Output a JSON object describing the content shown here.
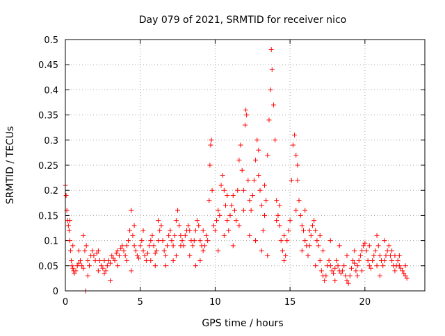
{
  "chart_data": {
    "type": "scatter",
    "title": "Day 079 of 2021, SRMTID for receiver nico",
    "xlabel": "GPS time / hours",
    "ylabel": "SRMTID / TECUs",
    "xlim": [
      0,
      24
    ],
    "ylim": [
      0,
      0.5
    ],
    "xticks": [
      0,
      5,
      10,
      15,
      20
    ],
    "xtick_labels": [
      "0",
      "5",
      "10",
      "15",
      "20"
    ],
    "yticks": [
      0,
      0.05,
      0.1,
      0.15,
      0.2,
      0.25,
      0.3,
      0.35,
      0.4,
      0.45,
      0.5
    ],
    "ytick_labels": [
      "0",
      "0.05",
      "0.1",
      "0.15",
      "0.2",
      "0.25",
      "0.3",
      "0.35",
      "0.4",
      "0.45",
      "0.5"
    ],
    "grid": true,
    "marker": "plus",
    "color": "#ff0000",
    "series": [
      {
        "name": "SRMTID",
        "points": [
          [
            0.0,
            0.21
          ],
          [
            0.05,
            0.19
          ],
          [
            0.1,
            0.16
          ],
          [
            0.15,
            0.14
          ],
          [
            0.2,
            0.13
          ],
          [
            0.25,
            0.12
          ],
          [
            0.3,
            0.1
          ],
          [
            0.35,
            0.08
          ],
          [
            0.4,
            0.06
          ],
          [
            0.45,
            0.05
          ],
          [
            0.5,
            0.045
          ],
          [
            0.55,
            0.04
          ],
          [
            0.6,
            0.035
          ],
          [
            0.7,
            0.04
          ],
          [
            0.8,
            0.05
          ],
          [
            0.9,
            0.055
          ],
          [
            1.0,
            0.06
          ],
          [
            1.1,
            0.05
          ],
          [
            1.2,
            0.045
          ],
          [
            1.3,
            0.08
          ],
          [
            1.4,
            0.09
          ],
          [
            1.5,
            0.06
          ],
          [
            1.6,
            0.05
          ],
          [
            1.7,
            0.07
          ],
          [
            1.8,
            0.08
          ],
          [
            1.9,
            0.07
          ],
          [
            2.0,
            0.06
          ],
          [
            2.1,
            0.075
          ],
          [
            2.2,
            0.08
          ],
          [
            2.3,
            0.06
          ],
          [
            2.4,
            0.05
          ],
          [
            2.5,
            0.045
          ],
          [
            2.6,
            0.035
          ],
          [
            2.7,
            0.04
          ],
          [
            2.8,
            0.05
          ],
          [
            2.9,
            0.06
          ],
          [
            3.0,
            0.055
          ],
          [
            3.1,
            0.07
          ],
          [
            3.2,
            0.065
          ],
          [
            3.3,
            0.06
          ],
          [
            3.4,
            0.075
          ],
          [
            3.5,
            0.08
          ],
          [
            3.6,
            0.07
          ],
          [
            3.7,
            0.085
          ],
          [
            3.8,
            0.09
          ],
          [
            3.9,
            0.08
          ],
          [
            4.0,
            0.07
          ],
          [
            4.1,
            0.06
          ],
          [
            4.2,
            0.1
          ],
          [
            4.3,
            0.12
          ],
          [
            4.4,
            0.16
          ],
          [
            4.5,
            0.11
          ],
          [
            4.6,
            0.09
          ],
          [
            4.7,
            0.08
          ],
          [
            4.8,
            0.07
          ],
          [
            4.9,
            0.065
          ],
          [
            5.0,
            0.09
          ],
          [
            5.1,
            0.1
          ],
          [
            5.2,
            0.08
          ],
          [
            5.3,
            0.07
          ],
          [
            5.4,
            0.06
          ],
          [
            5.5,
            0.075
          ],
          [
            5.6,
            0.09
          ],
          [
            5.7,
            0.1
          ],
          [
            5.8,
            0.11
          ],
          [
            5.9,
            0.09
          ],
          [
            6.0,
            0.075
          ],
          [
            6.1,
            0.08
          ],
          [
            6.2,
            0.1
          ],
          [
            6.3,
            0.12
          ],
          [
            6.4,
            0.13
          ],
          [
            6.5,
            0.1
          ],
          [
            6.6,
            0.08
          ],
          [
            6.7,
            0.07
          ],
          [
            6.8,
            0.09
          ],
          [
            6.9,
            0.11
          ],
          [
            7.0,
            0.12
          ],
          [
            7.1,
            0.1
          ],
          [
            7.2,
            0.09
          ],
          [
            7.3,
            0.11
          ],
          [
            7.4,
            0.14
          ],
          [
            7.5,
            0.16
          ],
          [
            7.6,
            0.13
          ],
          [
            7.7,
            0.11
          ],
          [
            7.8,
            0.1
          ],
          [
            7.9,
            0.09
          ],
          [
            8.0,
            0.11
          ],
          [
            8.1,
            0.12
          ],
          [
            8.2,
            0.13
          ],
          [
            8.3,
            0.12
          ],
          [
            8.4,
            0.1
          ],
          [
            8.5,
            0.09
          ],
          [
            8.6,
            0.1
          ],
          [
            8.7,
            0.12
          ],
          [
            8.8,
            0.14
          ],
          [
            8.9,
            0.13
          ],
          [
            9.0,
            0.1
          ],
          [
            9.1,
            0.09
          ],
          [
            9.2,
            0.08
          ],
          [
            9.3,
            0.09
          ],
          [
            9.4,
            0.11
          ],
          [
            9.5,
            0.1
          ],
          [
            9.6,
            0.18
          ],
          [
            9.65,
            0.25
          ],
          [
            9.7,
            0.29
          ],
          [
            9.75,
            0.3
          ],
          [
            9.8,
            0.2
          ],
          [
            9.9,
            0.13
          ],
          [
            10.0,
            0.12
          ],
          [
            10.1,
            0.14
          ],
          [
            10.2,
            0.16
          ],
          [
            10.3,
            0.15
          ],
          [
            10.4,
            0.21
          ],
          [
            10.5,
            0.23
          ],
          [
            10.6,
            0.2
          ],
          [
            10.7,
            0.17
          ],
          [
            10.8,
            0.14
          ],
          [
            10.9,
            0.12
          ],
          [
            11.0,
            0.15
          ],
          [
            11.1,
            0.17
          ],
          [
            11.2,
            0.19
          ],
          [
            11.3,
            0.16
          ],
          [
            11.4,
            0.14
          ],
          [
            11.5,
            0.2
          ],
          [
            11.6,
            0.26
          ],
          [
            11.7,
            0.29
          ],
          [
            11.8,
            0.24
          ],
          [
            11.9,
            0.2
          ],
          [
            12.0,
            0.33
          ],
          [
            12.05,
            0.36
          ],
          [
            12.1,
            0.35
          ],
          [
            12.2,
            0.22
          ],
          [
            12.3,
            0.18
          ],
          [
            12.4,
            0.16
          ],
          [
            12.5,
            0.19
          ],
          [
            12.6,
            0.22
          ],
          [
            12.7,
            0.26
          ],
          [
            12.8,
            0.3
          ],
          [
            12.9,
            0.28
          ],
          [
            13.0,
            0.2
          ],
          [
            13.1,
            0.17
          ],
          [
            13.2,
            0.12
          ],
          [
            13.3,
            0.15
          ],
          [
            13.4,
            0.18
          ],
          [
            13.5,
            0.27
          ],
          [
            13.6,
            0.34
          ],
          [
            13.7,
            0.4
          ],
          [
            13.75,
            0.48
          ],
          [
            13.8,
            0.44
          ],
          [
            13.9,
            0.37
          ],
          [
            14.0,
            0.3
          ],
          [
            14.1,
            0.18
          ],
          [
            14.2,
            0.15
          ],
          [
            14.3,
            0.13
          ],
          [
            14.4,
            0.1
          ],
          [
            14.5,
            0.08
          ],
          [
            14.6,
            0.06
          ],
          [
            14.7,
            0.07
          ],
          [
            14.8,
            0.1
          ],
          [
            14.9,
            0.12
          ],
          [
            15.0,
            0.14
          ],
          [
            15.1,
            0.22
          ],
          [
            15.2,
            0.29
          ],
          [
            15.3,
            0.31
          ],
          [
            15.4,
            0.27
          ],
          [
            15.5,
            0.22
          ],
          [
            15.6,
            0.18
          ],
          [
            15.7,
            0.15
          ],
          [
            15.8,
            0.13
          ],
          [
            15.9,
            0.12
          ],
          [
            16.0,
            0.1
          ],
          [
            16.1,
            0.09
          ],
          [
            16.2,
            0.07
          ],
          [
            16.3,
            0.09
          ],
          [
            16.4,
            0.11
          ],
          [
            16.5,
            0.13
          ],
          [
            16.6,
            0.14
          ],
          [
            16.7,
            0.12
          ],
          [
            16.8,
            0.1
          ],
          [
            16.9,
            0.09
          ],
          [
            17.0,
            0.06
          ],
          [
            17.1,
            0.04
          ],
          [
            17.2,
            0.03
          ],
          [
            17.3,
            0.02
          ],
          [
            17.4,
            0.03
          ],
          [
            17.5,
            0.05
          ],
          [
            17.6,
            0.06
          ],
          [
            17.7,
            0.05
          ],
          [
            17.8,
            0.04
          ],
          [
            17.9,
            0.035
          ],
          [
            18.0,
            0.045
          ],
          [
            18.1,
            0.06
          ],
          [
            18.2,
            0.05
          ],
          [
            18.3,
            0.04
          ],
          [
            18.4,
            0.035
          ],
          [
            18.5,
            0.04
          ],
          [
            18.6,
            0.05
          ],
          [
            18.7,
            0.03
          ],
          [
            18.8,
            0.02
          ],
          [
            18.9,
            0.015
          ],
          [
            19.0,
            0.03
          ],
          [
            19.1,
            0.045
          ],
          [
            19.2,
            0.06
          ],
          [
            19.3,
            0.055
          ],
          [
            19.4,
            0.04
          ],
          [
            19.5,
            0.05
          ],
          [
            19.6,
            0.06
          ],
          [
            19.7,
            0.07
          ],
          [
            19.8,
            0.08
          ],
          [
            19.9,
            0.09
          ],
          [
            20.0,
            0.095
          ],
          [
            20.1,
            0.08
          ],
          [
            20.2,
            0.06
          ],
          [
            20.3,
            0.05
          ],
          [
            20.4,
            0.045
          ],
          [
            20.5,
            0.06
          ],
          [
            20.6,
            0.07
          ],
          [
            20.7,
            0.08
          ],
          [
            20.8,
            0.11
          ],
          [
            20.9,
            0.09
          ],
          [
            21.0,
            0.07
          ],
          [
            21.1,
            0.06
          ],
          [
            21.2,
            0.05
          ],
          [
            21.3,
            0.06
          ],
          [
            21.4,
            0.07
          ],
          [
            21.5,
            0.08
          ],
          [
            21.6,
            0.09
          ],
          [
            21.7,
            0.07
          ],
          [
            21.8,
            0.06
          ],
          [
            21.9,
            0.05
          ],
          [
            22.0,
            0.04
          ],
          [
            22.1,
            0.05
          ],
          [
            22.2,
            0.06
          ],
          [
            22.3,
            0.05
          ],
          [
            22.4,
            0.045
          ],
          [
            22.5,
            0.04
          ],
          [
            22.6,
            0.035
          ],
          [
            22.7,
            0.03
          ],
          [
            22.8,
            0.025
          ],
          [
            0.3,
            0.14
          ],
          [
            0.5,
            0.09
          ],
          [
            0.9,
            0.08
          ],
          [
            1.2,
            0.11
          ],
          [
            2.2,
            0.04
          ],
          [
            2.6,
            0.06
          ],
          [
            3.5,
            0.05
          ],
          [
            4.1,
            0.09
          ],
          [
            4.6,
            0.13
          ],
          [
            5.2,
            0.12
          ],
          [
            5.7,
            0.06
          ],
          [
            6.2,
            0.14
          ],
          [
            6.7,
            0.05
          ],
          [
            7.2,
            0.06
          ],
          [
            7.7,
            0.09
          ],
          [
            8.3,
            0.07
          ],
          [
            8.7,
            0.05
          ],
          [
            9.2,
            0.12
          ],
          [
            10.2,
            0.08
          ],
          [
            10.6,
            0.11
          ],
          [
            11.2,
            0.09
          ],
          [
            11.6,
            0.13
          ],
          [
            12.3,
            0.11
          ],
          [
            12.7,
            0.1
          ],
          [
            13.1,
            0.08
          ],
          [
            13.5,
            0.07
          ],
          [
            14.1,
            0.14
          ],
          [
            14.6,
            0.11
          ],
          [
            15.4,
            0.16
          ],
          [
            15.8,
            0.08
          ],
          [
            16.3,
            0.12
          ],
          [
            16.7,
            0.05
          ],
          [
            17.2,
            0.08
          ],
          [
            17.7,
            0.1
          ],
          [
            18.3,
            0.09
          ],
          [
            18.8,
            0.07
          ],
          [
            19.3,
            0.08
          ],
          [
            19.8,
            0.04
          ],
          [
            20.3,
            0.09
          ],
          [
            20.8,
            0.05
          ],
          [
            21.3,
            0.1
          ],
          [
            21.8,
            0.08
          ],
          [
            22.3,
            0.07
          ],
          [
            22.7,
            0.05
          ],
          [
            1.5,
            0.03
          ],
          [
            3.0,
            0.02
          ],
          [
            4.4,
            0.04
          ],
          [
            6.0,
            0.05
          ],
          [
            7.4,
            0.07
          ],
          [
            9.0,
            0.06
          ],
          [
            10.8,
            0.19
          ],
          [
            11.9,
            0.16
          ],
          [
            12.9,
            0.23
          ],
          [
            13.3,
            0.21
          ],
          [
            14.3,
            0.17
          ],
          [
            15.5,
            0.25
          ],
          [
            16.0,
            0.16
          ],
          [
            17.0,
            0.11
          ],
          [
            18.0,
            0.02
          ],
          [
            19.5,
            0.03
          ],
          [
            21.0,
            0.03
          ],
          [
            22.0,
            0.07
          ],
          [
            1.35,
            0.0
          ]
        ]
      }
    ]
  }
}
